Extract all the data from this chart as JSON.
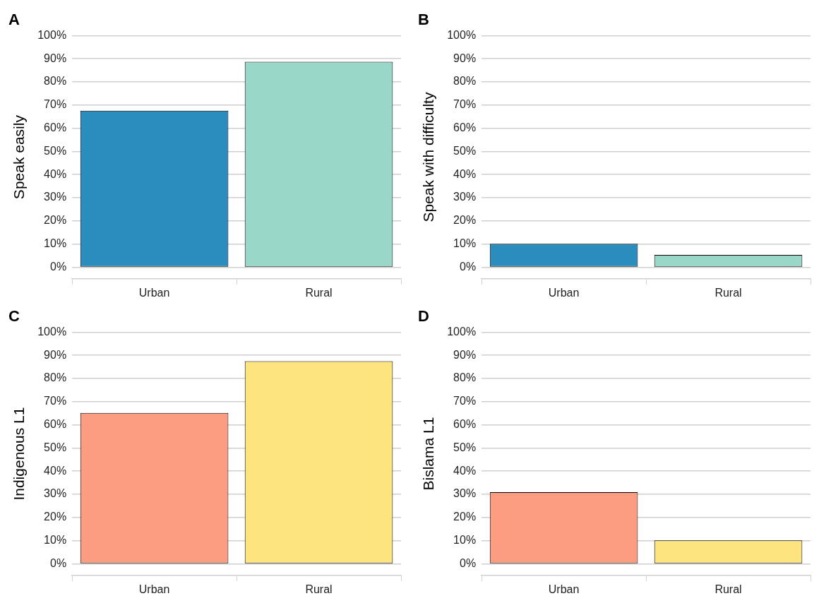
{
  "chart_data": [
    {
      "type": "bar",
      "title": "A",
      "ylabel": "Speak easily",
      "categories": [
        "Urban",
        "Rural"
      ],
      "values": [
        67.6,
        88.7
      ],
      "colors": [
        "#2b8cbe",
        "#99d8c9"
      ],
      "ylim": [
        -5,
        100
      ],
      "yticks": [
        {
          "value": 0,
          "label": "0%"
        },
        {
          "value": 10,
          "label": "10%"
        },
        {
          "value": 20,
          "label": "20%"
        },
        {
          "value": 30,
          "label": "30%"
        },
        {
          "value": 40,
          "label": "40%"
        },
        {
          "value": 50,
          "label": "50%"
        },
        {
          "value": 60,
          "label": "60%"
        },
        {
          "value": 70,
          "label": "70%"
        },
        {
          "value": 80,
          "label": "80%"
        },
        {
          "value": 90,
          "label": "90%"
        },
        {
          "value": 100,
          "label": "100%"
        }
      ],
      "grid": "y",
      "legend": false
    },
    {
      "type": "bar",
      "title": "B",
      "ylabel": "Speak with difficulty",
      "categories": [
        "Urban",
        "Rural"
      ],
      "values": [
        10.1,
        5.3
      ],
      "colors": [
        "#2b8cbe",
        "#99d8c9"
      ],
      "ylim": [
        -5,
        100
      ],
      "yticks": [
        {
          "value": 0,
          "label": "0%"
        },
        {
          "value": 10,
          "label": "10%"
        },
        {
          "value": 20,
          "label": "20%"
        },
        {
          "value": 30,
          "label": "30%"
        },
        {
          "value": 40,
          "label": "40%"
        },
        {
          "value": 50,
          "label": "50%"
        },
        {
          "value": 60,
          "label": "60%"
        },
        {
          "value": 70,
          "label": "70%"
        },
        {
          "value": 80,
          "label": "80%"
        },
        {
          "value": 90,
          "label": "90%"
        },
        {
          "value": 100,
          "label": "100%"
        }
      ],
      "grid": "y",
      "legend": false
    },
    {
      "type": "bar",
      "title": "C",
      "ylabel": "Indigenous L1",
      "categories": [
        "Urban",
        "Rural"
      ],
      "values": [
        65.1,
        87.5
      ],
      "colors": [
        "#fc9d82",
        "#fde47f"
      ],
      "ylim": [
        -5,
        100
      ],
      "yticks": [
        {
          "value": 0,
          "label": "0%"
        },
        {
          "value": 10,
          "label": "10%"
        },
        {
          "value": 20,
          "label": "20%"
        },
        {
          "value": 30,
          "label": "30%"
        },
        {
          "value": 40,
          "label": "40%"
        },
        {
          "value": 50,
          "label": "50%"
        },
        {
          "value": 60,
          "label": "60%"
        },
        {
          "value": 70,
          "label": "70%"
        },
        {
          "value": 80,
          "label": "80%"
        },
        {
          "value": 90,
          "label": "90%"
        },
        {
          "value": 100,
          "label": "100%"
        }
      ],
      "grid": "y",
      "legend": false
    },
    {
      "type": "bar",
      "title": "D",
      "ylabel": "Bislama L1",
      "categories": [
        "Urban",
        "Rural"
      ],
      "values": [
        30.9,
        10.1
      ],
      "colors": [
        "#fc9d82",
        "#fde47f"
      ],
      "ylim": [
        -5,
        100
      ],
      "yticks": [
        {
          "value": 0,
          "label": "0%"
        },
        {
          "value": 10,
          "label": "10%"
        },
        {
          "value": 20,
          "label": "20%"
        },
        {
          "value": 30,
          "label": "30%"
        },
        {
          "value": 40,
          "label": "40%"
        },
        {
          "value": 50,
          "label": "50%"
        },
        {
          "value": 60,
          "label": "60%"
        },
        {
          "value": 70,
          "label": "70%"
        },
        {
          "value": 80,
          "label": "80%"
        },
        {
          "value": 90,
          "label": "90%"
        },
        {
          "value": 100,
          "label": "100%"
        }
      ],
      "grid": "y",
      "legend": false
    }
  ]
}
